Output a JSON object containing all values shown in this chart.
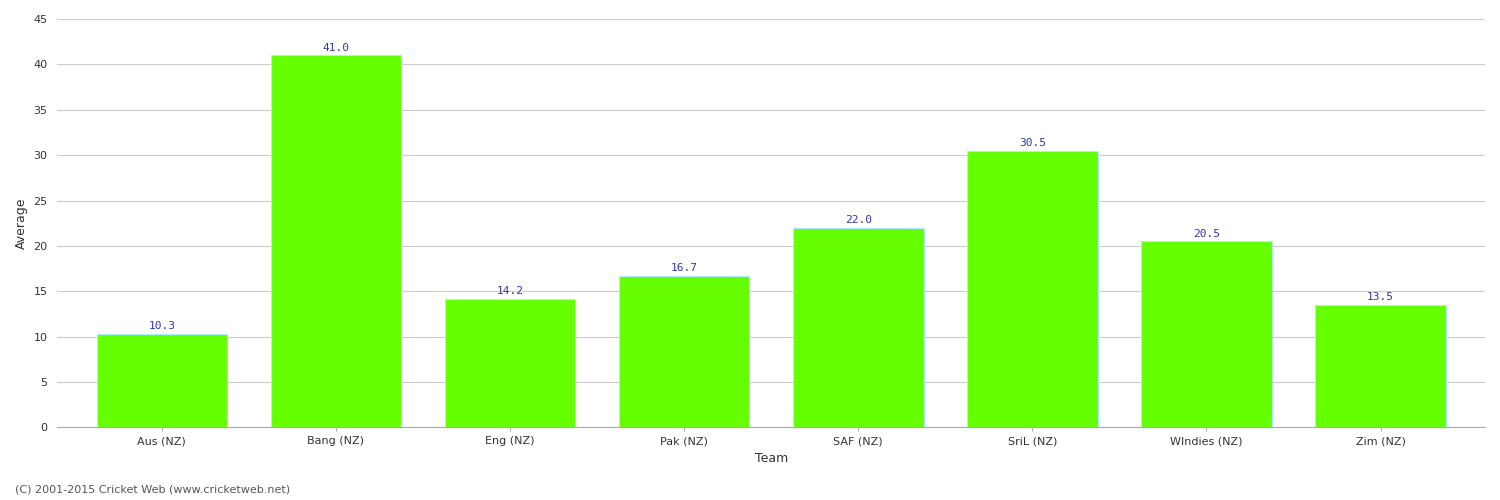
{
  "categories": [
    "Aus (NZ)",
    "Bang (NZ)",
    "Eng (NZ)",
    "Pak (NZ)",
    "SAF (NZ)",
    "SriL (NZ)",
    "WIndies (NZ)",
    "Zim (NZ)"
  ],
  "values": [
    10.3,
    41.0,
    14.2,
    16.7,
    22.0,
    30.5,
    20.5,
    13.5
  ],
  "bar_color": "#66ff00",
  "bar_edge_color": "#aaeeff",
  "value_label_color": "#3333aa",
  "xlabel": "Team",
  "ylabel": "Average",
  "ylim": [
    0,
    45
  ],
  "yticks": [
    0,
    5,
    10,
    15,
    20,
    25,
    30,
    35,
    40,
    45
  ],
  "background_color": "#ffffff",
  "grid_color": "#cccccc",
  "footer_text": "(C) 2001-2015 Cricket Web (www.cricketweb.net)",
  "value_fontsize": 8,
  "axis_label_fontsize": 9,
  "tick_label_fontsize": 8,
  "footer_fontsize": 8,
  "bar_width": 0.75
}
